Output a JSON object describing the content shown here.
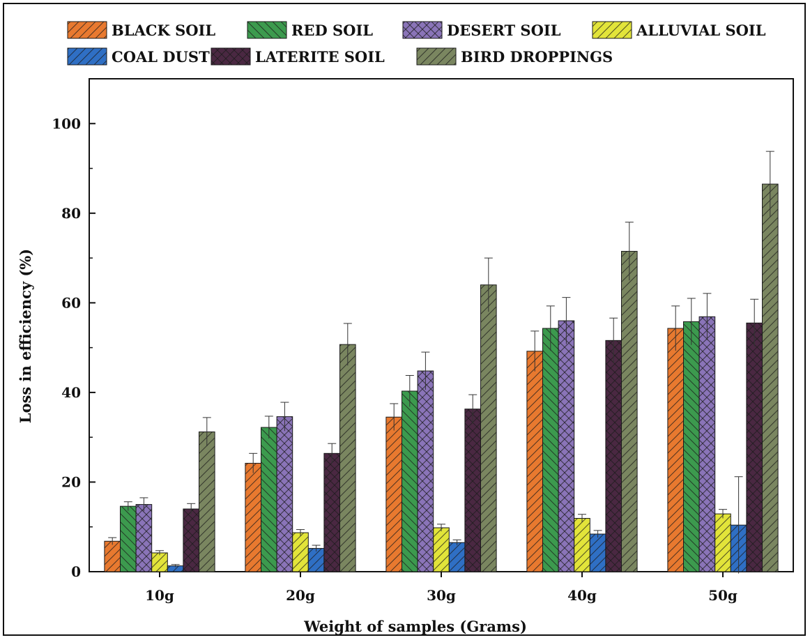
{
  "chart_data": {
    "type": "bar",
    "title": "",
    "xlabel": "Weight of samples (Grams)",
    "ylabel": "Loss in efficiency (%)",
    "ylim": [
      0,
      110
    ],
    "yticks": [
      0,
      20,
      40,
      60,
      80,
      100
    ],
    "categories": [
      "10g",
      "20g",
      "30g",
      "40g",
      "50g"
    ],
    "grid": false,
    "legend_position": "top",
    "series": [
      {
        "name": "BLACK SOIL",
        "color": "#e8792f",
        "pattern": "forward-diagonal",
        "values": [
          6.8,
          24.2,
          34.5,
          49.2,
          54.3
        ],
        "errors": [
          0.8,
          2.2,
          3.0,
          4.5,
          5.0
        ]
      },
      {
        "name": "RED SOIL",
        "color": "#3c9a4e",
        "pattern": "back-diagonal",
        "values": [
          14.6,
          32.2,
          40.3,
          54.3,
          55.8
        ],
        "errors": [
          1.0,
          2.5,
          3.5,
          5.0,
          5.2
        ]
      },
      {
        "name": "DESERT SOIL",
        "color": "#8a74b8",
        "pattern": "crosshatch",
        "values": [
          15.0,
          34.6,
          44.8,
          56.0,
          56.9
        ],
        "errors": [
          1.5,
          3.2,
          4.2,
          5.2,
          5.2
        ]
      },
      {
        "name": "ALLUVIAL SOIL",
        "color": "#e2e43a",
        "pattern": "forward-diagonal",
        "values": [
          4.2,
          8.7,
          9.8,
          11.9,
          12.9
        ],
        "errors": [
          0.5,
          0.7,
          0.8,
          0.9,
          1.0
        ]
      },
      {
        "name": "COAL DUST",
        "color": "#2f6fc4",
        "pattern": "forward-diagonal",
        "values": [
          1.3,
          5.2,
          6.5,
          8.4,
          10.4
        ],
        "errors": [
          0.3,
          0.7,
          0.6,
          0.8,
          10.8
        ]
      },
      {
        "name": "LATERITE SOIL",
        "color": "#4a2842",
        "pattern": "crosshatch",
        "values": [
          14.0,
          26.4,
          36.3,
          51.6,
          55.5
        ],
        "errors": [
          1.2,
          2.2,
          3.2,
          5.0,
          5.3
        ]
      },
      {
        "name": "BIRD DROPPINGS",
        "color": "#7a8660",
        "pattern": "forward-diagonal",
        "values": [
          31.2,
          50.7,
          64.0,
          71.5,
          86.5
        ],
        "errors": [
          3.2,
          4.7,
          6.0,
          6.5,
          7.3
        ]
      }
    ]
  }
}
